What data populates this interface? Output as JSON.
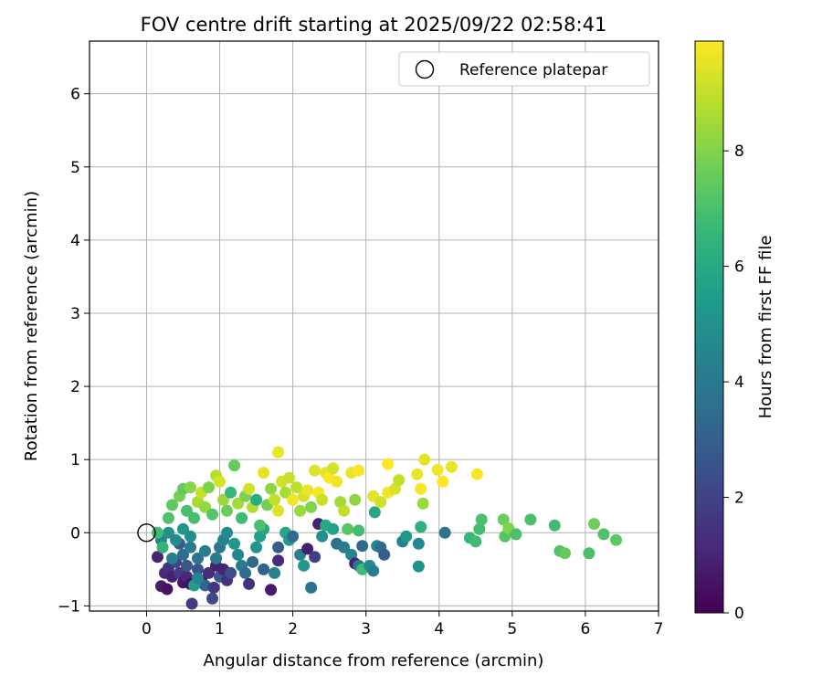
{
  "chart_data": {
    "type": "scatter",
    "title": "FOV centre drift starting at 2025/09/22 02:58:41",
    "xlabel": "Angular distance from reference (arcmin)",
    "ylabel": "Rotation from reference (arcmin)",
    "xlim": [
      -0.78,
      7.0
    ],
    "ylim": [
      -1.07,
      6.72
    ],
    "xticks": [
      0,
      1,
      2,
      3,
      4,
      5,
      6,
      7
    ],
    "yticks": [
      -1,
      0,
      1,
      2,
      3,
      4,
      5,
      6
    ],
    "grid": true,
    "legend": {
      "placement": "upper right",
      "entries": [
        "Reference platepar"
      ]
    },
    "reference_point": {
      "x": 0,
      "y": 0,
      "label": "Reference platepar"
    },
    "colorbar": {
      "label": "Hours from first FF file",
      "range": [
        0,
        9.9
      ],
      "ticks": [
        0,
        2,
        4,
        6,
        8
      ],
      "colormap": "viridis",
      "stops": [
        "#440154",
        "#482878",
        "#3e4989",
        "#31688e",
        "#26828e",
        "#1f9e89",
        "#35b779",
        "#6ece58",
        "#b5de2b",
        "#fde725"
      ]
    },
    "points": [
      {
        "x": 0.15,
        "y": -0.33,
        "t": 1.0
      },
      {
        "x": 0.2,
        "y": -0.73,
        "t": 0.8
      },
      {
        "x": 0.28,
        "y": -0.77,
        "t": 0.5
      },
      {
        "x": 0.25,
        "y": -0.55,
        "t": 1.2
      },
      {
        "x": 0.3,
        "y": -0.48,
        "t": 1.5
      },
      {
        "x": 0.35,
        "y": -0.6,
        "t": 0.9
      },
      {
        "x": 0.4,
        "y": -0.4,
        "t": 2.0
      },
      {
        "x": 0.45,
        "y": -0.55,
        "t": 1.7
      },
      {
        "x": 0.5,
        "y": -0.68,
        "t": 0.6
      },
      {
        "x": 0.55,
        "y": -0.6,
        "t": 1.1
      },
      {
        "x": 0.6,
        "y": -0.7,
        "t": 0.4
      },
      {
        "x": 0.62,
        "y": -0.97,
        "t": 1.8
      },
      {
        "x": 0.7,
        "y": -0.5,
        "t": 2.5
      },
      {
        "x": 0.75,
        "y": -0.65,
        "t": 0.7
      },
      {
        "x": 0.8,
        "y": -0.72,
        "t": 3.2
      },
      {
        "x": 0.85,
        "y": -0.55,
        "t": 1.3
      },
      {
        "x": 0.9,
        "y": -0.9,
        "t": 2.2
      },
      {
        "x": 0.92,
        "y": -0.75,
        "t": 1.6
      },
      {
        "x": 0.95,
        "y": -0.45,
        "t": 0.9
      },
      {
        "x": 1.0,
        "y": -0.6,
        "t": 2.8
      },
      {
        "x": 1.05,
        "y": -0.5,
        "t": 1.0
      },
      {
        "x": 1.1,
        "y": -0.65,
        "t": 1.5
      },
      {
        "x": 1.15,
        "y": -0.55,
        "t": 2.4
      },
      {
        "x": 0.5,
        "y": -0.3,
        "t": 3.5
      },
      {
        "x": 0.6,
        "y": -0.2,
        "t": 4.0
      },
      {
        "x": 0.7,
        "y": -0.35,
        "t": 3.8
      },
      {
        "x": 0.8,
        "y": -0.25,
        "t": 4.2
      },
      {
        "x": 0.35,
        "y": -0.35,
        "t": 4.3
      },
      {
        "x": 0.45,
        "y": -0.15,
        "t": 3.0
      },
      {
        "x": 0.55,
        "y": -0.45,
        "t": 2.7
      },
      {
        "x": 0.2,
        "y": -0.1,
        "t": 4.6
      },
      {
        "x": 0.3,
        "y": 0.0,
        "t": 5.0
      },
      {
        "x": 0.4,
        "y": -0.1,
        "t": 4.8
      },
      {
        "x": 0.5,
        "y": 0.05,
        "t": 5.2
      },
      {
        "x": 0.6,
        "y": -0.05,
        "t": 4.9
      },
      {
        "x": 0.65,
        "y": -0.72,
        "t": 5.5
      },
      {
        "x": 0.7,
        "y": -0.62,
        "t": 4.5
      },
      {
        "x": 0.95,
        "y": -0.35,
        "t": 4.1
      },
      {
        "x": 1.0,
        "y": -0.2,
        "t": 3.9
      },
      {
        "x": 1.05,
        "y": -0.1,
        "t": 4.4
      },
      {
        "x": 1.1,
        "y": 0.0,
        "t": 4.7
      },
      {
        "x": 1.2,
        "y": -0.15,
        "t": 5.3
      },
      {
        "x": 1.25,
        "y": -0.3,
        "t": 4.6
      },
      {
        "x": 1.3,
        "y": -0.45,
        "t": 4.0
      },
      {
        "x": 1.35,
        "y": -0.55,
        "t": 3.6
      },
      {
        "x": 1.4,
        "y": -0.7,
        "t": 1.4
      },
      {
        "x": 1.45,
        "y": -0.4,
        "t": 3.3
      },
      {
        "x": 1.5,
        "y": -0.2,
        "t": 5.1
      },
      {
        "x": 1.55,
        "y": -0.05,
        "t": 5.6
      },
      {
        "x": 1.6,
        "y": 0.05,
        "t": 5.8
      },
      {
        "x": 1.6,
        "y": -0.5,
        "t": 3.1
      },
      {
        "x": 1.7,
        "y": -0.78,
        "t": 0.7
      },
      {
        "x": 1.75,
        "y": -0.55,
        "t": 4.4
      },
      {
        "x": 1.8,
        "y": -0.38,
        "t": 1.2
      },
      {
        "x": 1.8,
        "y": -0.2,
        "t": 2.9
      },
      {
        "x": 1.9,
        "y": 0.0,
        "t": 5.9
      },
      {
        "x": 1.95,
        "y": -0.1,
        "t": 5.4
      },
      {
        "x": 2.0,
        "y": -0.05,
        "t": 3.4
      },
      {
        "x": 2.1,
        "y": -0.3,
        "t": 4.3
      },
      {
        "x": 2.15,
        "y": -0.45,
        "t": 5.2
      },
      {
        "x": 2.2,
        "y": -0.22,
        "t": 0.8
      },
      {
        "x": 2.25,
        "y": -0.75,
        "t": 3.8
      },
      {
        "x": 2.3,
        "y": -0.33,
        "t": 1.9
      },
      {
        "x": 2.35,
        "y": 0.12,
        "t": 0.9
      },
      {
        "x": 2.4,
        "y": -0.05,
        "t": 5.0
      },
      {
        "x": 2.45,
        "y": 0.1,
        "t": 6.0
      },
      {
        "x": 2.55,
        "y": 0.05,
        "t": 5.7
      },
      {
        "x": 2.6,
        "y": -0.15,
        "t": 3.7
      },
      {
        "x": 2.7,
        "y": -0.2,
        "t": 4.1
      },
      {
        "x": 2.8,
        "y": -0.3,
        "t": 4.5
      },
      {
        "x": 2.85,
        "y": -0.42,
        "t": 0.9
      },
      {
        "x": 2.9,
        "y": -0.45,
        "t": 3.9
      },
      {
        "x": 2.95,
        "y": -0.5,
        "t": 6.8
      },
      {
        "x": 2.95,
        "y": -0.18,
        "t": 3.3
      },
      {
        "x": 3.05,
        "y": -0.45,
        "t": 4.8
      },
      {
        "x": 3.1,
        "y": -0.52,
        "t": 4.2
      },
      {
        "x": 3.15,
        "y": -0.18,
        "t": 4.6
      },
      {
        "x": 3.2,
        "y": -0.2,
        "t": 3.5
      },
      {
        "x": 3.25,
        "y": -0.3,
        "t": 3.0
      },
      {
        "x": 3.12,
        "y": 0.28,
        "t": 5.9
      },
      {
        "x": 3.5,
        "y": -0.12,
        "t": 4.4
      },
      {
        "x": 3.55,
        "y": -0.05,
        "t": 5.3
      },
      {
        "x": 3.72,
        "y": -0.15,
        "t": 4.7
      },
      {
        "x": 3.72,
        "y": -0.46,
        "t": 5.0
      },
      {
        "x": 3.75,
        "y": 0.08,
        "t": 6.3
      },
      {
        "x": 4.08,
        "y": 0.0,
        "t": 3.8
      },
      {
        "x": 4.42,
        "y": -0.07,
        "t": 6.6
      },
      {
        "x": 4.55,
        "y": 0.05,
        "t": 6.9
      },
      {
        "x": 4.58,
        "y": 0.18,
        "t": 7.0
      },
      {
        "x": 4.5,
        "y": -0.12,
        "t": 6.8
      },
      {
        "x": 4.88,
        "y": 0.18,
        "t": 7.6
      },
      {
        "x": 4.9,
        "y": -0.05,
        "t": 7.2
      },
      {
        "x": 4.95,
        "y": 0.06,
        "t": 8.0
      },
      {
        "x": 5.05,
        "y": -0.02,
        "t": 7.0
      },
      {
        "x": 5.25,
        "y": 0.18,
        "t": 7.0
      },
      {
        "x": 5.58,
        "y": 0.1,
        "t": 6.8
      },
      {
        "x": 5.65,
        "y": -0.25,
        "t": 7.2
      },
      {
        "x": 5.72,
        "y": -0.28,
        "t": 7.5
      },
      {
        "x": 6.05,
        "y": -0.28,
        "t": 7.0
      },
      {
        "x": 6.12,
        "y": 0.12,
        "t": 7.7
      },
      {
        "x": 6.25,
        "y": -0.02,
        "t": 7.1
      },
      {
        "x": 6.42,
        "y": -0.1,
        "t": 7.4
      },
      {
        "x": 0.15,
        "y": 0.0,
        "t": 6.8
      },
      {
        "x": 0.22,
        "y": -0.2,
        "t": 6.5
      },
      {
        "x": 0.3,
        "y": 0.2,
        "t": 7.1
      },
      {
        "x": 0.35,
        "y": 0.38,
        "t": 7.4
      },
      {
        "x": 0.45,
        "y": 0.5,
        "t": 7.8
      },
      {
        "x": 0.5,
        "y": 0.6,
        "t": 7.5
      },
      {
        "x": 0.55,
        "y": 0.3,
        "t": 7.0
      },
      {
        "x": 0.6,
        "y": 0.62,
        "t": 8.1
      },
      {
        "x": 0.65,
        "y": 0.2,
        "t": 6.9
      },
      {
        "x": 0.7,
        "y": 0.42,
        "t": 8.6
      },
      {
        "x": 0.75,
        "y": 0.55,
        "t": 9.0
      },
      {
        "x": 0.8,
        "y": 0.35,
        "t": 8.3
      },
      {
        "x": 0.85,
        "y": 0.62,
        "t": 7.9
      },
      {
        "x": 0.9,
        "y": 0.25,
        "t": 7.2
      },
      {
        "x": 0.95,
        "y": 0.78,
        "t": 8.8
      },
      {
        "x": 1.0,
        "y": 0.7,
        "t": 9.3
      },
      {
        "x": 1.05,
        "y": 0.45,
        "t": 8.4
      },
      {
        "x": 1.1,
        "y": 0.3,
        "t": 7.6
      },
      {
        "x": 1.15,
        "y": 0.55,
        "t": 6.6
      },
      {
        "x": 1.2,
        "y": 0.92,
        "t": 7.5
      },
      {
        "x": 1.25,
        "y": 0.4,
        "t": 8.5
      },
      {
        "x": 1.3,
        "y": 0.2,
        "t": 6.8
      },
      {
        "x": 1.35,
        "y": 0.5,
        "t": 7.9
      },
      {
        "x": 1.4,
        "y": 0.6,
        "t": 9.2
      },
      {
        "x": 1.45,
        "y": 0.35,
        "t": 8.7
      },
      {
        "x": 1.5,
        "y": 0.45,
        "t": 6.1
      },
      {
        "x": 1.55,
        "y": 0.1,
        "t": 7.0
      },
      {
        "x": 1.6,
        "y": 0.82,
        "t": 9.5
      },
      {
        "x": 1.65,
        "y": 0.38,
        "t": 7.8
      },
      {
        "x": 1.7,
        "y": 0.6,
        "t": 8.2
      },
      {
        "x": 1.75,
        "y": 0.45,
        "t": 9.0
      },
      {
        "x": 1.8,
        "y": 0.3,
        "t": 9.4
      },
      {
        "x": 1.8,
        "y": 1.1,
        "t": 9.6
      },
      {
        "x": 1.85,
        "y": 0.7,
        "t": 9.2
      },
      {
        "x": 1.9,
        "y": 0.55,
        "t": 8.6
      },
      {
        "x": 1.95,
        "y": 0.75,
        "t": 9.1
      },
      {
        "x": 2.0,
        "y": 0.45,
        "t": 9.7
      },
      {
        "x": 2.05,
        "y": 0.62,
        "t": 8.9
      },
      {
        "x": 2.1,
        "y": 0.3,
        "t": 8.4
      },
      {
        "x": 2.15,
        "y": 0.5,
        "t": 9.3
      },
      {
        "x": 2.2,
        "y": 0.58,
        "t": 9.6
      },
      {
        "x": 2.25,
        "y": 0.35,
        "t": 8.0
      },
      {
        "x": 2.3,
        "y": 0.85,
        "t": 9.4
      },
      {
        "x": 2.35,
        "y": 0.55,
        "t": 9.8
      },
      {
        "x": 2.4,
        "y": 0.45,
        "t": 9.1
      },
      {
        "x": 2.45,
        "y": 0.82,
        "t": 9.5
      },
      {
        "x": 2.5,
        "y": 0.75,
        "t": 9.9
      },
      {
        "x": 2.55,
        "y": 0.88,
        "t": 9.3
      },
      {
        "x": 2.6,
        "y": 0.7,
        "t": 9.7
      },
      {
        "x": 2.65,
        "y": 0.42,
        "t": 8.5
      },
      {
        "x": 2.7,
        "y": 0.3,
        "t": 9.0
      },
      {
        "x": 2.75,
        "y": 0.05,
        "t": 7.3
      },
      {
        "x": 2.8,
        "y": 0.82,
        "t": 9.6
      },
      {
        "x": 2.85,
        "y": 0.45,
        "t": 8.2
      },
      {
        "x": 2.9,
        "y": 0.85,
        "t": 9.8
      },
      {
        "x": 2.9,
        "y": 0.03,
        "t": 6.9
      },
      {
        "x": 3.1,
        "y": 0.5,
        "t": 9.5
      },
      {
        "x": 3.2,
        "y": 0.42,
        "t": 9.2
      },
      {
        "x": 3.3,
        "y": 0.55,
        "t": 9.7
      },
      {
        "x": 3.3,
        "y": 0.94,
        "t": 9.9
      },
      {
        "x": 3.4,
        "y": 0.6,
        "t": 9.3
      },
      {
        "x": 3.45,
        "y": 0.72,
        "t": 9.0
      },
      {
        "x": 3.7,
        "y": 0.8,
        "t": 9.6
      },
      {
        "x": 3.75,
        "y": 0.6,
        "t": 9.8
      },
      {
        "x": 3.78,
        "y": 0.4,
        "t": 8.4
      },
      {
        "x": 3.8,
        "y": 1.0,
        "t": 9.5
      },
      {
        "x": 3.98,
        "y": 0.86,
        "t": 9.7
      },
      {
        "x": 4.05,
        "y": 0.7,
        "t": 9.9
      },
      {
        "x": 4.17,
        "y": 0.9,
        "t": 9.6
      },
      {
        "x": 4.52,
        "y": 0.8,
        "t": 9.8
      }
    ]
  }
}
